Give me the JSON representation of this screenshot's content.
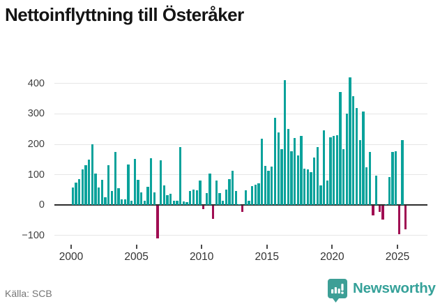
{
  "header": {
    "title": "Nettoinflyttning till Österåker"
  },
  "footer": {
    "source": "Källa: SCB",
    "brand_name": "Newsworthy",
    "brand_icon": "newsworthy-speech-bubble-bar-chart-icon"
  },
  "colors": {
    "positive_bar": "#0aa29b",
    "negative_bar": "#a00d52",
    "brand_teal": "#3d9f96",
    "gridline": "#e6e6e6",
    "zero_line": "#2b2b2b"
  },
  "chart_data": {
    "type": "bar",
    "title": "Nettoinflyttning till Österåker",
    "source": "Källa: SCB",
    "x_unit": "quarter",
    "start_period": "2000 Q1",
    "end_period": "2025 Q3",
    "grid": true,
    "ylim": [
      -130,
      430
    ],
    "y_ticks": [
      400,
      300,
      200,
      100,
      0,
      -100
    ],
    "y_tick_labels": [
      "400",
      "300",
      "200",
      "100",
      "0",
      "−100"
    ],
    "x_tick_years": [
      2000,
      2005,
      2010,
      2015,
      2020,
      2025
    ],
    "x_tick_labels": [
      "2000",
      "2005",
      "2010",
      "2015",
      "2020",
      "2025"
    ],
    "values": [
      59,
      74,
      85,
      117,
      132,
      149,
      200,
      103,
      59,
      83,
      25,
      131,
      47,
      176,
      56,
      18,
      20,
      133,
      15,
      151,
      83,
      42,
      14,
      60,
      154,
      42,
      -106,
      147,
      66,
      33,
      37,
      14,
      15,
      192,
      12,
      10,
      46,
      52,
      50,
      80,
      -11,
      40,
      103,
      -44,
      80,
      39,
      14,
      52,
      85,
      114,
      46,
      4,
      -19,
      49,
      15,
      62,
      68,
      72,
      218,
      130,
      114,
      126,
      288,
      240,
      185,
      410,
      250,
      178,
      220,
      164,
      227,
      121,
      117,
      109,
      156,
      191,
      66,
      246,
      82,
      223,
      227,
      230,
      371,
      184,
      301,
      420,
      359,
      319,
      214,
      308,
      125,
      176,
      -31,
      98,
      -20,
      -45,
      4,
      92,
      174,
      178,
      -94,
      214,
      -78
    ]
  }
}
